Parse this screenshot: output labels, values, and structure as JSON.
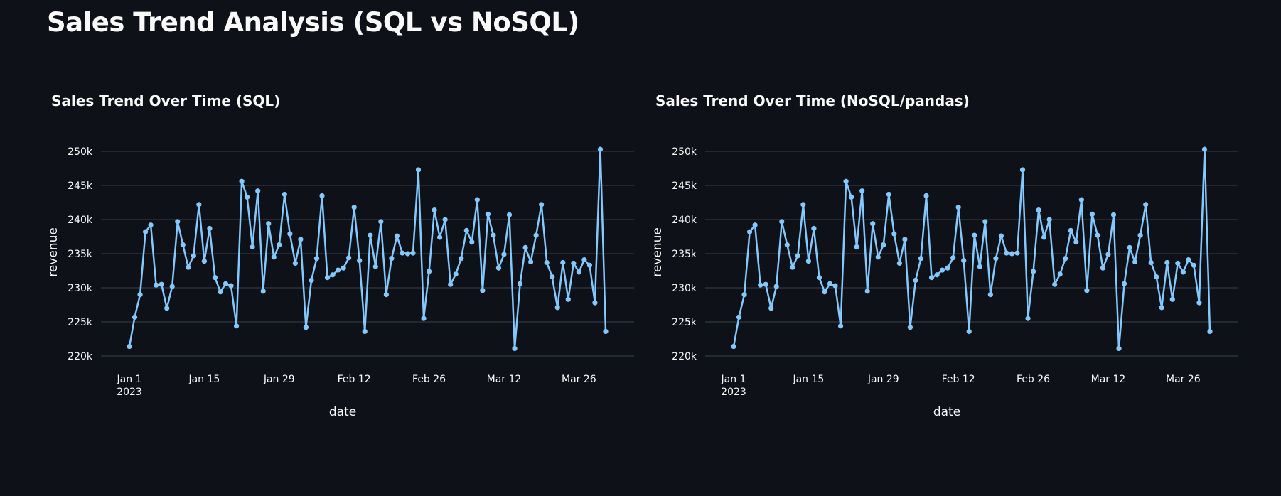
{
  "page": {
    "title": "Sales Trend Analysis (SQL vs NoSQL)"
  },
  "colors": {
    "background": "#0e1117",
    "series": "#83c9ff",
    "grid": "#3a3f4b",
    "text": "#fafafa"
  },
  "chart_data": [
    {
      "type": "line",
      "title": "Sales Trend Over Time (SQL)",
      "xlabel": "date",
      "ylabel": "revenue",
      "x_start": "2023-01-01",
      "x_ticks": [
        {
          "date": "2023-01-01",
          "label": "Jan 1",
          "sublabel": "2023"
        },
        {
          "date": "2023-01-15",
          "label": "Jan 15",
          "sublabel": ""
        },
        {
          "date": "2023-01-29",
          "label": "Jan 29",
          "sublabel": ""
        },
        {
          "date": "2023-02-12",
          "label": "Feb 12",
          "sublabel": ""
        },
        {
          "date": "2023-02-26",
          "label": "Feb 26",
          "sublabel": ""
        },
        {
          "date": "2023-03-12",
          "label": "Mar 12",
          "sublabel": ""
        },
        {
          "date": "2023-03-26",
          "label": "Mar 26",
          "sublabel": ""
        }
      ],
      "y_ticks": [
        {
          "value": 220000,
          "label": "220k"
        },
        {
          "value": 225000,
          "label": "225k"
        },
        {
          "value": 230000,
          "label": "230k"
        },
        {
          "value": 235000,
          "label": "235k"
        },
        {
          "value": 240000,
          "label": "240k"
        },
        {
          "value": 245000,
          "label": "245k"
        },
        {
          "value": 250000,
          "label": "250k"
        }
      ],
      "ylim": [
        220000,
        250000
      ],
      "grid": true,
      "markers": true,
      "values": [
        221400,
        225700,
        229000,
        238200,
        239200,
        230400,
        230500,
        227000,
        230200,
        239700,
        236300,
        233000,
        234700,
        242200,
        233900,
        238700,
        231500,
        229400,
        230600,
        230300,
        224400,
        245600,
        243300,
        236000,
        244200,
        229500,
        239400,
        234500,
        236300,
        243700,
        237900,
        233600,
        237100,
        224200,
        231100,
        234300,
        243500,
        231500,
        231900,
        232600,
        232900,
        234400,
        241800,
        234000,
        223600,
        237700,
        233100,
        239700,
        229000,
        234300,
        237600,
        235100,
        235000,
        235100,
        247300,
        225500,
        232400,
        241400,
        237400,
        240000,
        230500,
        232000,
        234300,
        238400,
        236700,
        242900,
        229600,
        240800,
        237700,
        232900,
        234900,
        240700,
        221100,
        230600,
        235900,
        233800,
        237700,
        242200,
        233700,
        231600,
        227100,
        233700,
        228300,
        233600,
        232300,
        234100,
        233300,
        227800,
        250300,
        223600
      ]
    },
    {
      "type": "line",
      "title": "Sales Trend Over Time (NoSQL/pandas)",
      "xlabel": "date",
      "ylabel": "revenue",
      "x_start": "2023-01-01",
      "x_ticks": [
        {
          "date": "2023-01-01",
          "label": "Jan 1",
          "sublabel": "2023"
        },
        {
          "date": "2023-01-15",
          "label": "Jan 15",
          "sublabel": ""
        },
        {
          "date": "2023-01-29",
          "label": "Jan 29",
          "sublabel": ""
        },
        {
          "date": "2023-02-12",
          "label": "Feb 12",
          "sublabel": ""
        },
        {
          "date": "2023-02-26",
          "label": "Feb 26",
          "sublabel": ""
        },
        {
          "date": "2023-03-12",
          "label": "Mar 12",
          "sublabel": ""
        },
        {
          "date": "2023-03-26",
          "label": "Mar 26",
          "sublabel": ""
        }
      ],
      "y_ticks": [
        {
          "value": 220000,
          "label": "220k"
        },
        {
          "value": 225000,
          "label": "225k"
        },
        {
          "value": 230000,
          "label": "230k"
        },
        {
          "value": 235000,
          "label": "235k"
        },
        {
          "value": 240000,
          "label": "240k"
        },
        {
          "value": 245000,
          "label": "245k"
        },
        {
          "value": 250000,
          "label": "250k"
        }
      ],
      "ylim": [
        220000,
        250000
      ],
      "grid": true,
      "markers": true,
      "values": [
        221400,
        225700,
        229000,
        238200,
        239200,
        230400,
        230500,
        227000,
        230200,
        239700,
        236300,
        233000,
        234700,
        242200,
        233900,
        238700,
        231500,
        229400,
        230600,
        230300,
        224400,
        245600,
        243300,
        236000,
        244200,
        229500,
        239400,
        234500,
        236300,
        243700,
        237900,
        233600,
        237100,
        224200,
        231100,
        234300,
        243500,
        231500,
        231900,
        232600,
        232900,
        234400,
        241800,
        234000,
        223600,
        237700,
        233100,
        239700,
        229000,
        234300,
        237600,
        235100,
        235000,
        235100,
        247300,
        225500,
        232400,
        241400,
        237400,
        240000,
        230500,
        232000,
        234300,
        238400,
        236700,
        242900,
        229600,
        240800,
        237700,
        232900,
        234900,
        240700,
        221100,
        230600,
        235900,
        233800,
        237700,
        242200,
        233700,
        231600,
        227100,
        233700,
        228300,
        233600,
        232300,
        234100,
        233300,
        227800,
        250300,
        223600
      ]
    }
  ]
}
